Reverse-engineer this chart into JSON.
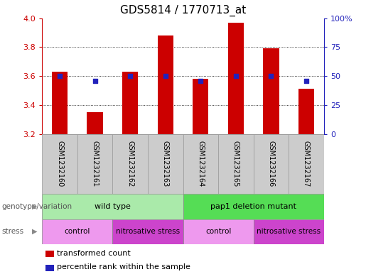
{
  "title": "GDS5814 / 1770713_at",
  "samples": [
    "GSM1232160",
    "GSM1232161",
    "GSM1232162",
    "GSM1232163",
    "GSM1232164",
    "GSM1232165",
    "GSM1232166",
    "GSM1232167"
  ],
  "transformed_count": [
    3.63,
    3.35,
    3.63,
    3.88,
    3.58,
    3.97,
    3.79,
    3.51
  ],
  "percentile_rank": [
    50,
    46,
    50,
    50,
    46,
    50,
    50,
    46
  ],
  "ylim_left": [
    3.2,
    4.0
  ],
  "ylim_right": [
    0,
    100
  ],
  "yticks_left": [
    3.2,
    3.4,
    3.6,
    3.8,
    4.0
  ],
  "yticks_right": [
    0,
    25,
    50,
    75,
    100
  ],
  "ytick_labels_right": [
    "0",
    "25",
    "50",
    "75",
    "100%"
  ],
  "bar_color": "#cc0000",
  "dot_color": "#2222bb",
  "left_axis_color": "#cc0000",
  "right_axis_color": "#2222bb",
  "genotype_groups": [
    {
      "label": "wild type",
      "start": 0,
      "end": 3,
      "color": "#aaeaaa"
    },
    {
      "label": "pap1 deletion mutant",
      "start": 4,
      "end": 7,
      "color": "#55dd55"
    }
  ],
  "stress_groups": [
    {
      "label": "control",
      "start": 0,
      "end": 1,
      "color": "#ee99ee"
    },
    {
      "label": "nitrosative stress",
      "start": 2,
      "end": 3,
      "color": "#cc44cc"
    },
    {
      "label": "control",
      "start": 4,
      "end": 5,
      "color": "#ee99ee"
    },
    {
      "label": "nitrosative stress",
      "start": 6,
      "end": 7,
      "color": "#cc44cc"
    }
  ],
  "legend_items": [
    {
      "label": "transformed count",
      "color": "#cc0000"
    },
    {
      "label": "percentile rank within the sample",
      "color": "#2222bb"
    }
  ],
  "genotype_label": "genotype/variation",
  "stress_label": "stress",
  "bar_width": 0.45,
  "sample_col_color": "#cccccc",
  "sample_border_color": "#999999"
}
